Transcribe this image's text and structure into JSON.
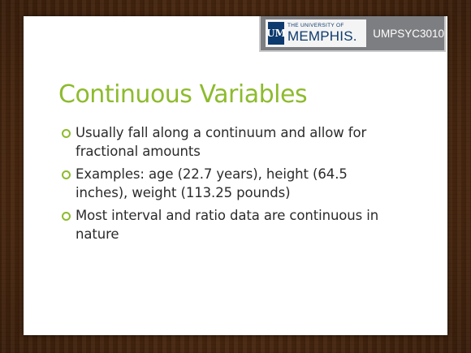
{
  "header": {
    "logo_small_text": "THE UNIVERSITY OF",
    "logo_big_text": "MEMPHIS.",
    "logo_mark": "UM",
    "course_code": "UMPSYC3010"
  },
  "slide": {
    "title": "Continuous Variables",
    "bullets": [
      "Usually fall along a continuum and allow for fractional amounts",
      "Examples: age (22.7 years), height (64.5 inches), weight (113.25 pounds)",
      "Most interval and ratio data are continuous in nature"
    ]
  },
  "colors": {
    "accent": "#8dbb2d",
    "logo_navy": "#0d3a6e",
    "tag_gray": "#7d7e81"
  }
}
